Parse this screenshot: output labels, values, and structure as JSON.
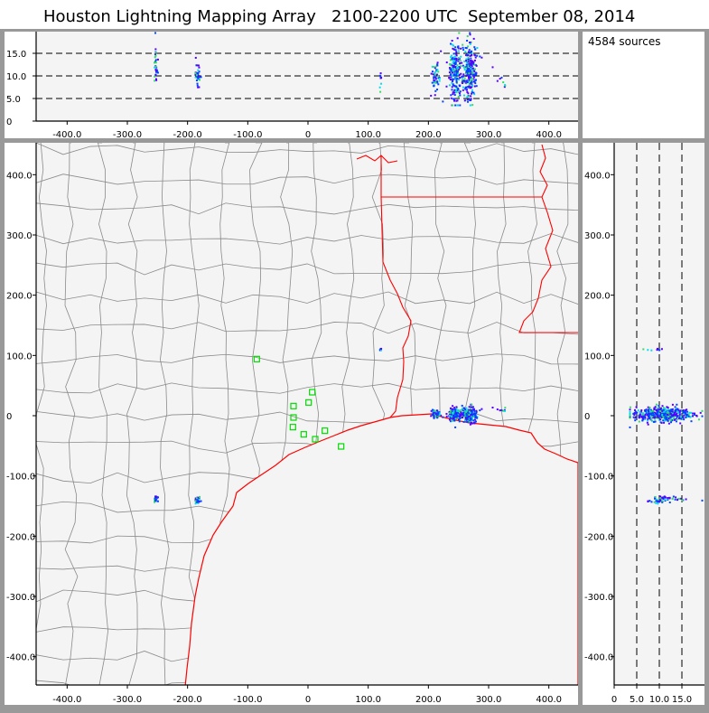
{
  "chart_data": {
    "type": "scatter",
    "title": "Houston Lightning Mapping Array   2100-2200 UTC  September 08, 2014",
    "source_count_label": "4584 sources",
    "plan_view": {
      "xlim": [
        -450,
        450
      ],
      "ylim": [
        -450,
        450
      ],
      "xticks": [
        "-400.0",
        "-300.0",
        "-200.0",
        "-100.0",
        "0",
        "100.0",
        "200.0",
        "300.0",
        "400.0"
      ],
      "xtick_values": [
        -400,
        -300,
        -200,
        -100,
        0,
        100,
        200,
        300,
        400
      ],
      "yticks": [
        "400.0",
        "300.0",
        "200.0",
        "100.0",
        "0",
        "-100.0",
        "-200.0",
        "-300.0",
        "-400.0"
      ],
      "ytick_values": [
        400,
        300,
        200,
        100,
        0,
        -100,
        -200,
        -300,
        -400
      ]
    },
    "altitude_view": {
      "ylim": [
        0,
        20
      ],
      "yticks": [
        "15.0",
        "10.0",
        "5.0",
        "0"
      ],
      "ytick_values": [
        15,
        10,
        5,
        0
      ],
      "dashed_levels": [
        5,
        10,
        15
      ]
    },
    "side_view": {
      "xlim": [
        0,
        20
      ],
      "xticks": [
        "0",
        "5.0",
        "10.0",
        "15.0"
      ],
      "xtick_values": [
        0,
        5,
        10,
        15
      ],
      "dashed_levels": [
        5,
        10,
        15
      ]
    },
    "stations": [
      {
        "x": -85,
        "y": 94
      },
      {
        "x": -24,
        "y": 16
      },
      {
        "x": 7,
        "y": 39
      },
      {
        "x": 1,
        "y": 22
      },
      {
        "x": -24,
        "y": -3
      },
      {
        "x": -25,
        "y": -19
      },
      {
        "x": -7,
        "y": -31
      },
      {
        "x": 12,
        "y": -39
      },
      {
        "x": 28,
        "y": -25
      },
      {
        "x": 55,
        "y": -51
      }
    ],
    "source_clusters": [
      {
        "x": 245,
        "y": 2,
        "alt": 10.5,
        "sx": 6,
        "sy": 5,
        "salt": 3.2,
        "n": 220
      },
      {
        "x": 268,
        "y": 2,
        "alt": 11,
        "sx": 6,
        "sy": 6,
        "salt": 3.0,
        "n": 240
      },
      {
        "x": 212,
        "y": 3,
        "alt": 10,
        "sx": 3,
        "sy": 3,
        "salt": 1.5,
        "n": 50
      },
      {
        "x": -253,
        "y": -137,
        "alt": 12,
        "sx": 2,
        "sy": 3,
        "salt": 2.0,
        "n": 30
      },
      {
        "x": -183,
        "y": -140,
        "alt": 10.5,
        "sx": 2,
        "sy": 3,
        "salt": 1.5,
        "n": 30
      },
      {
        "x": 120,
        "y": 110,
        "alt": 9,
        "sx": 1,
        "sy": 1,
        "salt": 0.8,
        "n": 8
      },
      {
        "x": 330,
        "y": 12,
        "alt": 9,
        "sx": 10,
        "sy": 3,
        "salt": 1.0,
        "n": 8
      }
    ],
    "colors": {
      "low": "#5500ff",
      "mid": "#0044ff",
      "high": "#00ddee",
      "peak": "#33dd66",
      "station": "#00dd00",
      "state_line": "#ff0000",
      "county_line": "#888888",
      "panel_bg": "#f4f4f4",
      "frame": "#999999"
    }
  }
}
